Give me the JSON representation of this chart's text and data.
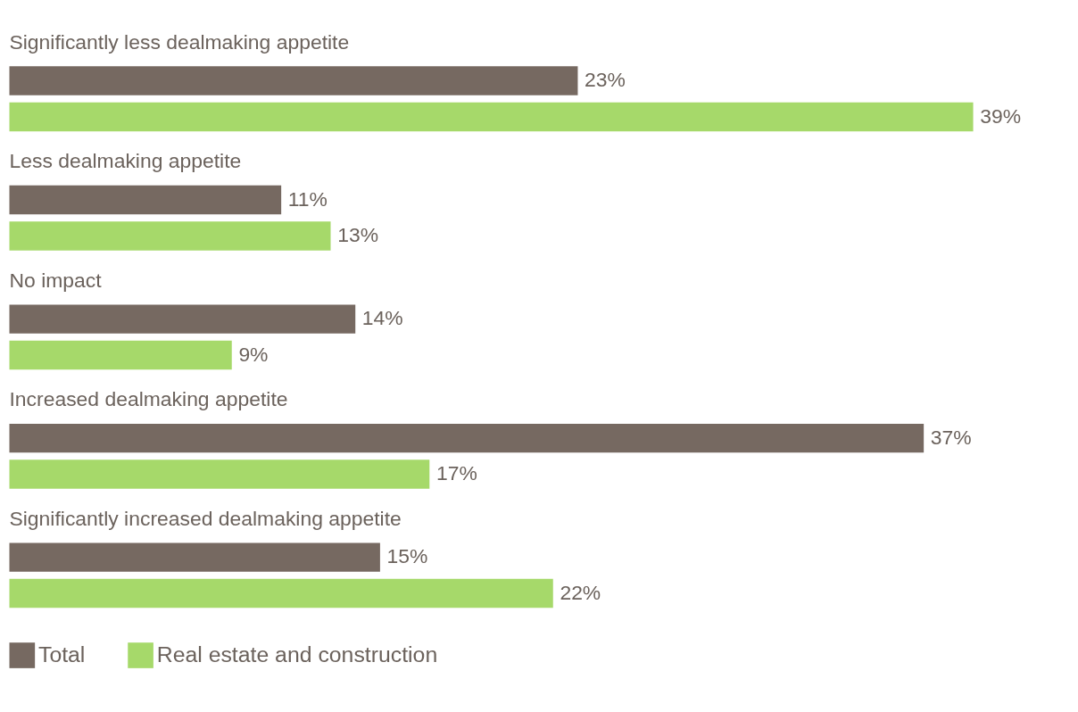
{
  "chart_data": {
    "type": "bar",
    "orientation": "horizontal",
    "categories": [
      "Significantly less dealmaking appetite",
      "Less dealmaking appetite",
      "No impact",
      "Increased dealmaking appetite",
      "Significantly increased dealmaking appetite"
    ],
    "series": [
      {
        "name": "Total",
        "color": "#766961",
        "values": [
          23,
          11,
          14,
          37,
          15
        ],
        "value_labels": [
          "23%",
          "11%",
          "14%",
          "37%",
          "15%"
        ]
      },
      {
        "name": "Real estate and construction",
        "color": "#a6d96a",
        "values": [
          39,
          13,
          9,
          17,
          22
        ],
        "value_labels": [
          "39%",
          "13%",
          "9%",
          "17%",
          "22%"
        ]
      }
    ],
    "legend": "bottom left"
  }
}
